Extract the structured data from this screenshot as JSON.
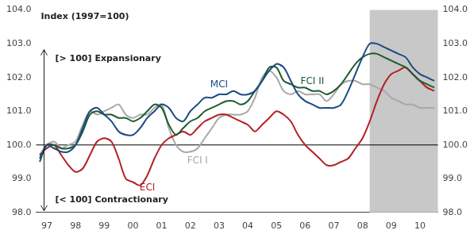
{
  "chart_data": {
    "type": "line",
    "annotations": [
      "Index (1997=100)",
      "[> 100] Expansionary",
      "[< 100] Contractionary"
    ],
    "reference_line": 100,
    "shaded_from_index": 46,
    "categories": [
      null,
      "97",
      null,
      null,
      null,
      "98",
      null,
      null,
      null,
      "99",
      null,
      null,
      null,
      "00",
      null,
      null,
      null,
      "01",
      null,
      null,
      null,
      "02",
      null,
      null,
      null,
      "03",
      null,
      null,
      null,
      "04",
      null,
      null,
      null,
      "05",
      null,
      null,
      null,
      "06",
      null,
      null,
      null,
      "07",
      null,
      null,
      null,
      "08",
      null,
      null,
      null,
      "09",
      null,
      null,
      null,
      "10",
      null,
      null
    ],
    "series": [
      {
        "name": "MCI",
        "color": "#1b4a82",
        "values": [
          99.6,
          100.0,
          99.9,
          99.8,
          99.8,
          100.0,
          100.5,
          101.0,
          101.1,
          100.9,
          100.7,
          100.4,
          100.3,
          100.3,
          100.5,
          100.8,
          101.0,
          101.2,
          101.1,
          100.8,
          100.7,
          101.0,
          101.2,
          101.4,
          101.4,
          101.5,
          101.5,
          101.6,
          101.5,
          101.5,
          101.6,
          101.9,
          102.2,
          102.4,
          102.3,
          101.9,
          101.5,
          101.3,
          101.2,
          101.1,
          101.1,
          101.1,
          101.2,
          101.6,
          102.1,
          102.6,
          103.0,
          103.0,
          102.9,
          102.8,
          102.7,
          102.6,
          102.3,
          102.1,
          102.0,
          101.9
        ]
      },
      {
        "name": "FCI II",
        "color": "#1f5a2c",
        "values": [
          99.5,
          100.0,
          100.0,
          99.9,
          99.9,
          100.0,
          100.4,
          100.9,
          101.0,
          100.9,
          100.9,
          100.8,
          100.8,
          100.7,
          100.8,
          101.0,
          101.2,
          101.1,
          100.6,
          100.3,
          100.5,
          100.7,
          100.8,
          101.0,
          101.1,
          101.2,
          101.3,
          101.3,
          101.2,
          101.3,
          101.6,
          101.9,
          102.3,
          102.3,
          101.9,
          101.8,
          101.7,
          101.7,
          101.6,
          101.6,
          101.5,
          101.6,
          101.8,
          102.1,
          102.4,
          102.6,
          102.7,
          102.7,
          102.6,
          102.5,
          102.4,
          102.3,
          102.1,
          101.9,
          101.8,
          101.7
        ]
      },
      {
        "name": "ECI",
        "color": "#b42025",
        "values": [
          99.7,
          99.9,
          100.0,
          99.7,
          99.4,
          99.2,
          99.3,
          99.7,
          100.1,
          100.2,
          100.1,
          99.6,
          99.0,
          98.9,
          98.8,
          99.1,
          99.6,
          100.0,
          100.2,
          100.3,
          100.4,
          100.3,
          100.5,
          100.7,
          100.8,
          100.9,
          100.9,
          100.8,
          100.7,
          100.6,
          100.4,
          100.6,
          100.8,
          101.0,
          100.9,
          100.7,
          100.3,
          100.0,
          99.8,
          99.6,
          99.4,
          99.4,
          99.5,
          99.6,
          99.9,
          100.2,
          100.7,
          101.3,
          101.8,
          102.1,
          102.2,
          102.3,
          102.1,
          101.9,
          101.7,
          101.6
        ]
      },
      {
        "name": "FCI I",
        "color": "#a8a8a8",
        "values": [
          99.7,
          100.0,
          100.1,
          99.9,
          100.0,
          100.1,
          100.6,
          101.0,
          100.9,
          101.0,
          101.1,
          101.2,
          100.9,
          100.8,
          100.9,
          100.9,
          101.1,
          101.2,
          100.5,
          100.0,
          99.8,
          99.8,
          99.9,
          100.2,
          100.5,
          100.8,
          100.9,
          100.9,
          100.9,
          101.0,
          101.4,
          102.0,
          102.2,
          102.0,
          101.6,
          101.5,
          101.6,
          101.5,
          101.5,
          101.5,
          101.3,
          101.5,
          101.8,
          101.9,
          101.9,
          101.8,
          101.8,
          101.7,
          101.6,
          101.4,
          101.3,
          101.2,
          101.2,
          101.1,
          101.1,
          101.1
        ]
      }
    ],
    "ylim": [
      98,
      104
    ],
    "yticks": [
      {
        "value": 98,
        "label": "98.0"
      },
      {
        "value": 99,
        "label": "99.0"
      },
      {
        "value": 100,
        "label": "100.0"
      },
      {
        "value": 101,
        "label": "101.0"
      },
      {
        "value": 102,
        "label": "102.0"
      },
      {
        "value": 103,
        "label": "103.0"
      },
      {
        "value": 104,
        "label": "104.0"
      }
    ],
    "y2lim": [
      98,
      104
    ],
    "y2ticks": [
      {
        "value": 98,
        "label": "98.0"
      },
      {
        "value": 99,
        "label": "99.0"
      },
      {
        "value": 100,
        "label": "100.0"
      },
      {
        "value": 101,
        "label": "101.0"
      },
      {
        "value": 102,
        "label": "102.0"
      },
      {
        "value": 103,
        "label": "103.0"
      },
      {
        "value": 104,
        "label": "104.0"
      }
    ],
    "grid": false,
    "legend": "none"
  }
}
